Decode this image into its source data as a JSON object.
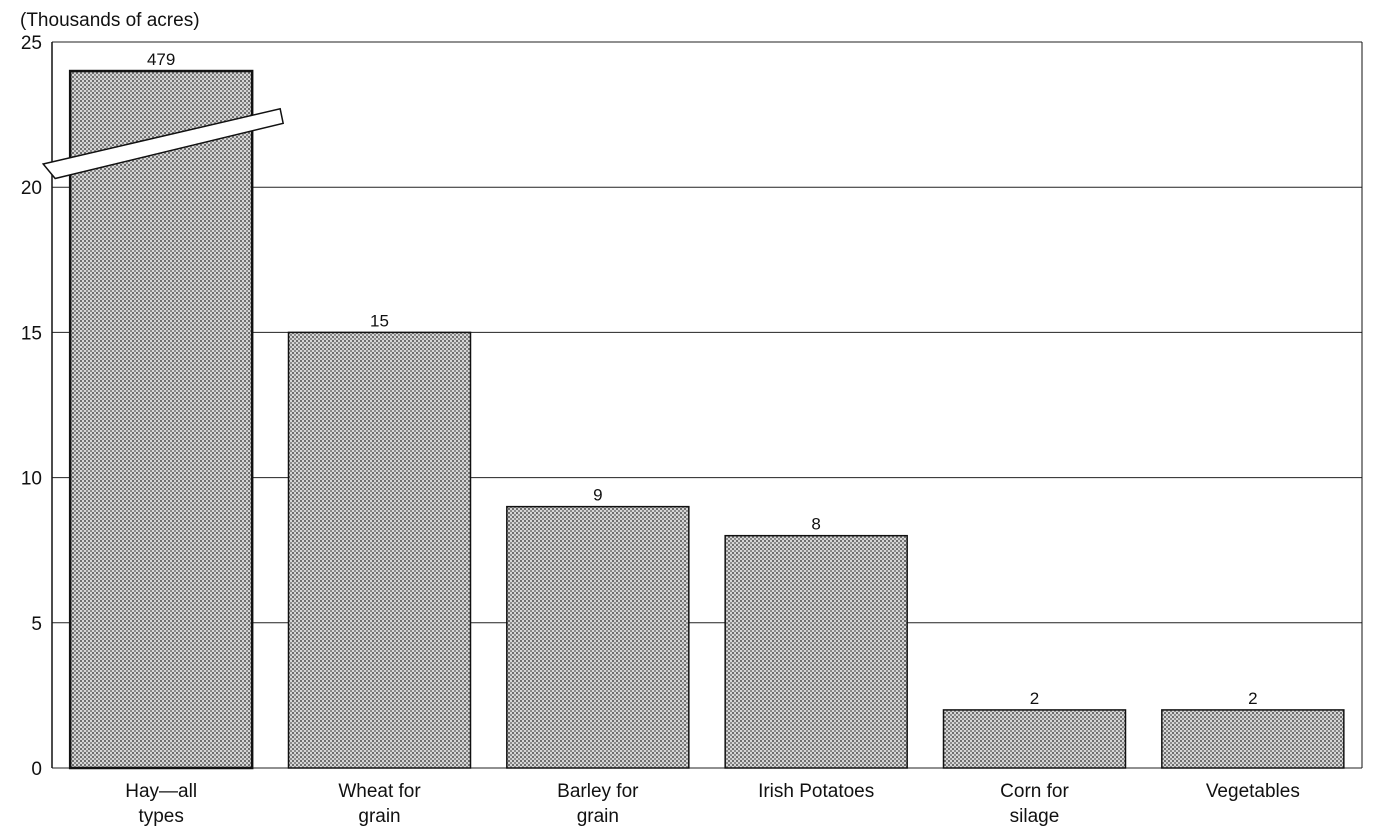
{
  "chart_data": {
    "type": "bar",
    "title": "",
    "ylabel": "(Thousands of acres)",
    "xlabel": "",
    "ylim": [
      0,
      25
    ],
    "yticks": [
      0,
      5,
      10,
      15,
      20,
      25
    ],
    "grid": true,
    "axis_break": {
      "category": "Hay—all types",
      "display_value": 24
    },
    "categories": [
      [
        "Hay—all",
        "types"
      ],
      [
        "Wheat for",
        "grain"
      ],
      [
        "Barley for",
        "grain"
      ],
      [
        "Irish Potatoes"
      ],
      [
        "Corn for",
        "silage"
      ],
      [
        "Vegetables"
      ]
    ],
    "values": [
      479,
      15,
      9,
      8,
      2,
      2
    ],
    "data_labels": [
      "479",
      "15",
      "9",
      "8",
      "2",
      "2"
    ],
    "colors": {
      "bar_fill": "#b8b8b8",
      "bar_stroke": "#111111",
      "grid": "#222222"
    }
  }
}
